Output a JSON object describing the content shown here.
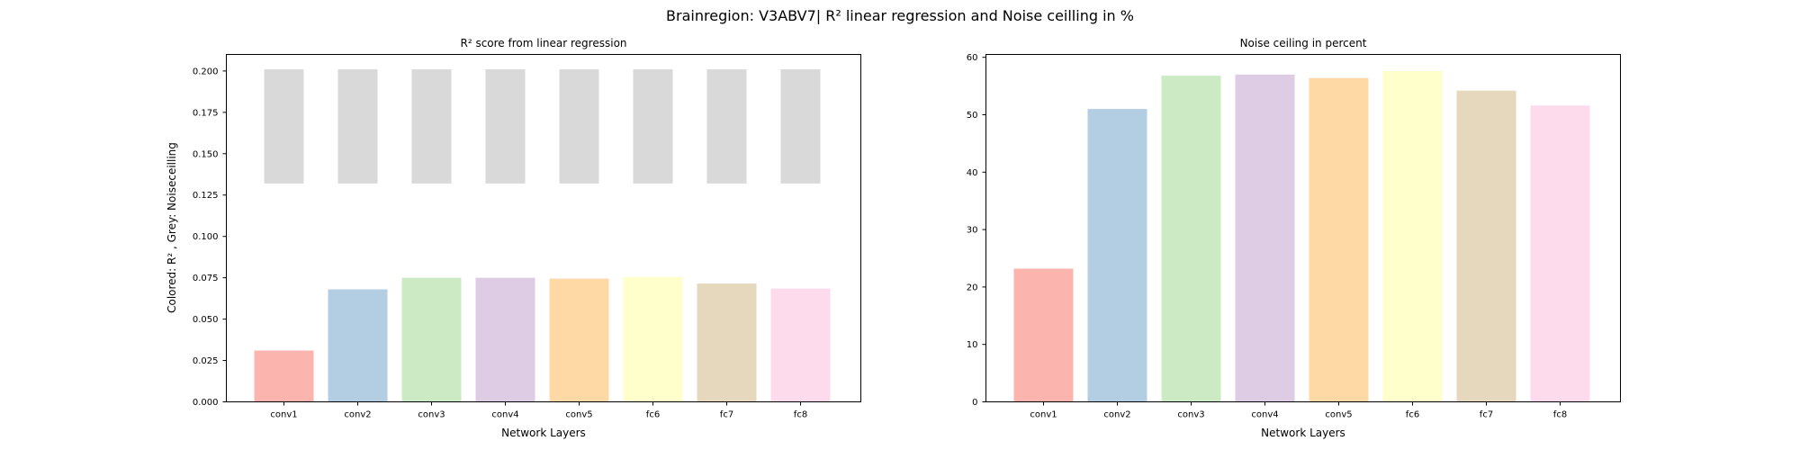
{
  "figure": {
    "suptitle": "Brainregion: V3ABV7| R² linear regression and Noise ceilling in %"
  },
  "chart_data": [
    {
      "type": "bar",
      "title": "R² score from linear regression",
      "xlabel": "Network Layers",
      "ylabel": "Colored: R² , Grey: Noiseceilling",
      "categories": [
        "conv1",
        "conv2",
        "conv3",
        "conv4",
        "conv5",
        "fc6",
        "fc7",
        "fc8"
      ],
      "ylim": [
        0,
        0.21
      ],
      "yticks": [
        0.0,
        0.025,
        0.05,
        0.075,
        0.1,
        0.125,
        0.15,
        0.175,
        0.2
      ],
      "ytick_labels": [
        "0.000",
        "0.025",
        "0.050",
        "0.075",
        "0.100",
        "0.125",
        "0.150",
        "0.175",
        "0.200"
      ],
      "grid": false,
      "series": [
        {
          "values": [
            0.031,
            0.068,
            0.075,
            0.075,
            0.0745,
            0.0755,
            0.0715,
            0.0685
          ],
          "colors": [
            "#fbb4ae",
            "#b3cde3",
            "#ccebc5",
            "#decbe4",
            "#fed9a6",
            "#ffffcc",
            "#e5d8bd",
            "#fddaec"
          ]
        },
        {
          "type": "floating-bar",
          "ranges": [
            [
              0.132,
              0.201
            ],
            [
              0.132,
              0.201
            ],
            [
              0.132,
              0.201
            ],
            [
              0.132,
              0.201
            ],
            [
              0.132,
              0.201
            ],
            [
              0.132,
              0.201
            ],
            [
              0.132,
              0.201
            ],
            [
              0.132,
              0.201
            ]
          ],
          "color": "#d9d9d9"
        }
      ]
    },
    {
      "type": "bar",
      "title": "Noise ceiling in percent",
      "xlabel": "Network Layers",
      "ylabel": "",
      "categories": [
        "conv1",
        "conv2",
        "conv3",
        "conv4",
        "conv5",
        "fc6",
        "fc7",
        "fc8"
      ],
      "ylim": [
        0,
        60.5
      ],
      "yticks": [
        0,
        10,
        20,
        30,
        40,
        50,
        60
      ],
      "ytick_labels": [
        "0",
        "10",
        "20",
        "30",
        "40",
        "50",
        "60"
      ],
      "grid": false,
      "series": [
        {
          "values": [
            23.2,
            51.0,
            56.8,
            57.0,
            56.4,
            57.6,
            54.2,
            51.6
          ],
          "colors": [
            "#fbb4ae",
            "#b3cde3",
            "#ccebc5",
            "#decbe4",
            "#fed9a6",
            "#ffffcc",
            "#e5d8bd",
            "#fddaec"
          ]
        }
      ]
    }
  ]
}
